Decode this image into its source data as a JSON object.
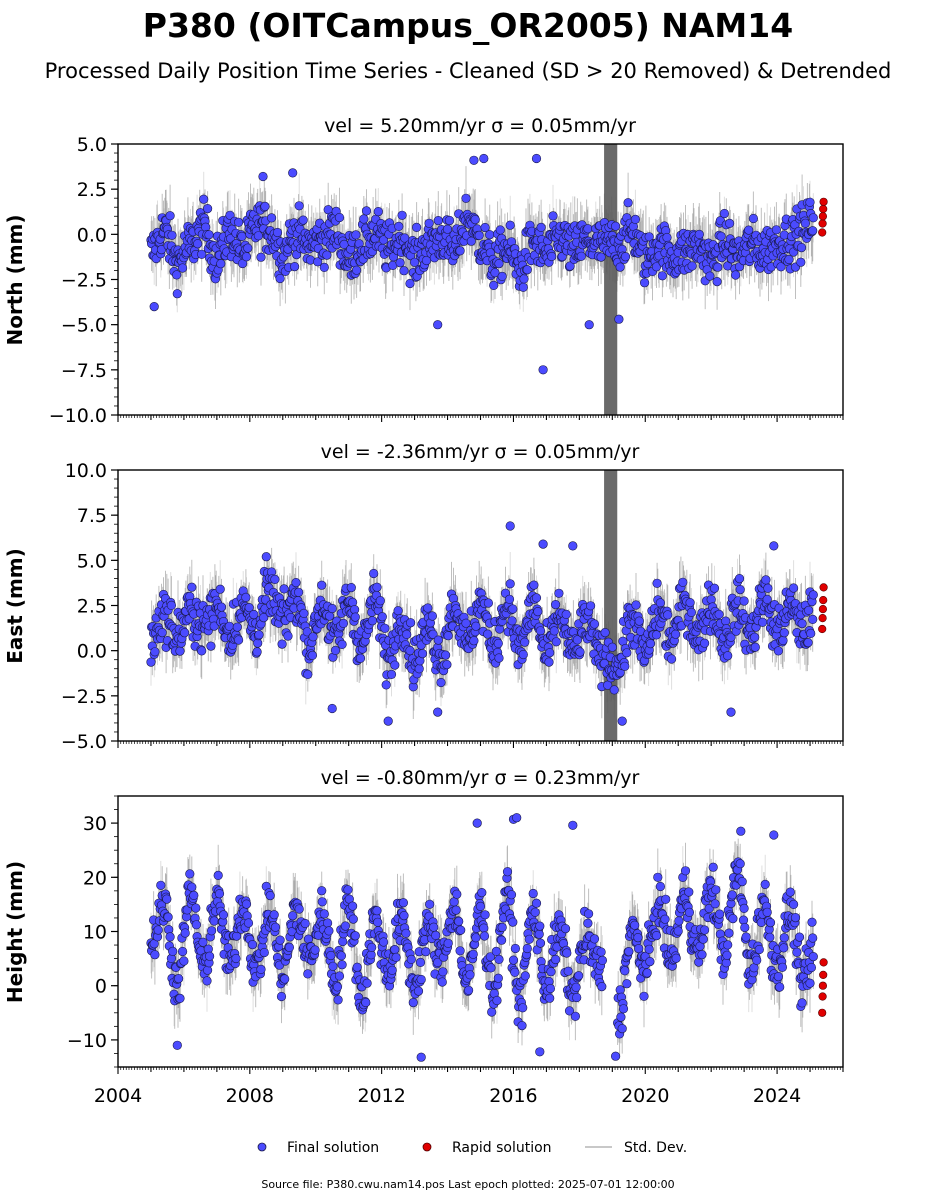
{
  "figure": {
    "title": "P380 (OITCampus_OR2005) NAM14",
    "subtitle": "Processed Daily Position Time Series - Cleaned (SD > 20 Removed) & Detrended",
    "source": "Source file: P380.cwu.nam14.pos  Last epoch plotted: 2025-07-01 12:00:00"
  },
  "legend": {
    "final": "Final solution",
    "rapid": "Rapid solution",
    "std": "Std. Dev."
  },
  "colors": {
    "final": "#4b4bff",
    "rapid": "#e00000",
    "std": "#7f7f7f"
  },
  "chart_data": {
    "type": "scatter",
    "xlim": [
      2004,
      2026
    ],
    "xticks": [
      "2004",
      "2008",
      "2012",
      "2016",
      "2020",
      "2024"
    ],
    "panels": [
      {
        "name": "north",
        "title": "vel = 5.20mm/yr   σ = 0.05mm/yr",
        "ylabel": "North (mm)",
        "ylim": [
          -10,
          5
        ],
        "yticks": [
          "−10.0",
          "−7.5",
          "−5.0",
          "−2.5",
          "0.0",
          "2.5",
          "5.0"
        ],
        "samples": [
          [
            2005.0,
            -1.0
          ],
          [
            2005.4,
            0.2
          ],
          [
            2005.8,
            -1.5
          ],
          [
            2006.2,
            -0.6
          ],
          [
            2006.6,
            0.4
          ],
          [
            2007.0,
            -1.3
          ],
          [
            2007.4,
            0.1
          ],
          [
            2007.8,
            -0.9
          ],
          [
            2008.2,
            0.5
          ],
          [
            2008.6,
            0.3
          ],
          [
            2009.0,
            -1.1
          ],
          [
            2009.4,
            0.0
          ],
          [
            2009.8,
            -0.6
          ],
          [
            2010.2,
            -0.3
          ],
          [
            2010.6,
            0.2
          ],
          [
            2011.0,
            -1.4
          ],
          [
            2011.4,
            -0.5
          ],
          [
            2011.8,
            0.0
          ],
          [
            2012.2,
            -0.8
          ],
          [
            2012.6,
            -0.2
          ],
          [
            2013.0,
            -1.4
          ],
          [
            2013.4,
            -0.6
          ],
          [
            2013.8,
            -0.1
          ],
          [
            2014.2,
            -0.9
          ],
          [
            2014.6,
            0.9
          ],
          [
            2015.0,
            -0.4
          ],
          [
            2015.4,
            -1.6
          ],
          [
            2015.8,
            -0.8
          ],
          [
            2016.2,
            -1.9
          ],
          [
            2016.6,
            -0.5
          ],
          [
            2017.0,
            -1.1
          ],
          [
            2017.4,
            -0.2
          ],
          [
            2017.8,
            -0.9
          ],
          [
            2018.2,
            -0.4
          ],
          [
            2018.6,
            -0.6
          ],
          [
            2019.2,
            -0.5
          ],
          [
            2019.6,
            0.2
          ],
          [
            2020.0,
            -1.4
          ],
          [
            2020.4,
            -0.6
          ],
          [
            2020.8,
            -1.2
          ],
          [
            2021.2,
            -1.0
          ],
          [
            2021.6,
            -0.7
          ],
          [
            2022.0,
            -1.5
          ],
          [
            2022.4,
            -0.4
          ],
          [
            2022.8,
            -1.2
          ],
          [
            2023.2,
            -0.6
          ],
          [
            2023.6,
            -0.9
          ],
          [
            2024.0,
            -0.5
          ],
          [
            2024.4,
            -0.3
          ],
          [
            2024.8,
            0.2
          ],
          [
            2025.1,
            0.8
          ]
        ],
        "outliers": [
          [
            2015.1,
            4.2
          ],
          [
            2016.7,
            4.2
          ],
          [
            2014.8,
            4.1
          ],
          [
            2008.4,
            3.2
          ],
          [
            2009.3,
            3.4
          ],
          [
            2016.9,
            -7.5
          ],
          [
            2018.3,
            -5.0
          ],
          [
            2013.7,
            -5.0
          ],
          [
            2005.1,
            -4.0
          ],
          [
            2019.2,
            -4.7
          ]
        ],
        "rapid": [
          [
            2025.37,
            0.1
          ],
          [
            2025.38,
            0.6
          ],
          [
            2025.39,
            1.0
          ],
          [
            2025.4,
            1.4
          ],
          [
            2025.41,
            1.8
          ]
        ],
        "band": [
          2018.75,
          2019.15
        ]
      },
      {
        "name": "east",
        "title": "vel = -2.36mm/yr   σ = 0.05mm/yr",
        "ylabel": "East (mm)",
        "ylim": [
          -5,
          10
        ],
        "yticks": [
          "−5.0",
          "−2.5",
          "0.0",
          "2.5",
          "5.0",
          "7.5",
          "10.0"
        ],
        "samples": [
          [
            2005.0,
            0.5
          ],
          [
            2005.4,
            2.0
          ],
          [
            2005.8,
            0.8
          ],
          [
            2006.2,
            2.2
          ],
          [
            2006.6,
            1.3
          ],
          [
            2007.0,
            2.5
          ],
          [
            2007.4,
            0.9
          ],
          [
            2007.8,
            2.4
          ],
          [
            2008.2,
            1.1
          ],
          [
            2008.6,
            3.3
          ],
          [
            2009.0,
            1.6
          ],
          [
            2009.4,
            3.0
          ],
          [
            2009.8,
            0.2
          ],
          [
            2010.2,
            2.6
          ],
          [
            2010.6,
            0.5
          ],
          [
            2011.0,
            2.8
          ],
          [
            2011.4,
            0.3
          ],
          [
            2011.8,
            2.9
          ],
          [
            2012.2,
            -0.5
          ],
          [
            2012.6,
            1.9
          ],
          [
            2013.0,
            -0.6
          ],
          [
            2013.4,
            1.4
          ],
          [
            2013.8,
            -0.4
          ],
          [
            2014.2,
            2.5
          ],
          [
            2014.6,
            0.4
          ],
          [
            2015.0,
            2.6
          ],
          [
            2015.4,
            0.2
          ],
          [
            2015.8,
            2.7
          ],
          [
            2016.2,
            0.0
          ],
          [
            2016.6,
            2.6
          ],
          [
            2017.0,
            -0.3
          ],
          [
            2017.4,
            2.0
          ],
          [
            2017.8,
            -0.1
          ],
          [
            2018.2,
            1.6
          ],
          [
            2018.6,
            -0.2
          ],
          [
            2019.2,
            -0.8
          ],
          [
            2019.6,
            1.8
          ],
          [
            2020.0,
            -0.2
          ],
          [
            2020.4,
            2.2
          ],
          [
            2020.8,
            0.6
          ],
          [
            2021.2,
            2.7
          ],
          [
            2021.6,
            0.8
          ],
          [
            2022.0,
            2.6
          ],
          [
            2022.4,
            0.6
          ],
          [
            2022.8,
            2.5
          ],
          [
            2023.2,
            0.8
          ],
          [
            2023.6,
            3.0
          ],
          [
            2024.0,
            1.0
          ],
          [
            2024.4,
            2.4
          ],
          [
            2024.8,
            1.2
          ],
          [
            2025.1,
            2.0
          ]
        ],
        "outliers": [
          [
            2015.9,
            6.9
          ],
          [
            2016.9,
            5.9
          ],
          [
            2017.8,
            5.8
          ],
          [
            2023.9,
            5.8
          ],
          [
            2008.5,
            5.2
          ],
          [
            2013.7,
            -3.4
          ],
          [
            2022.6,
            -3.4
          ],
          [
            2012.2,
            -3.9
          ],
          [
            2010.5,
            -3.2
          ],
          [
            2019.3,
            -3.9
          ]
        ],
        "rapid": [
          [
            2025.37,
            1.2
          ],
          [
            2025.38,
            1.8
          ],
          [
            2025.39,
            2.3
          ],
          [
            2025.4,
            2.8
          ],
          [
            2025.41,
            3.5
          ]
        ],
        "band": [
          2018.75,
          2019.15
        ]
      },
      {
        "name": "height",
        "title": "vel = -0.80mm/yr   σ = 0.23mm/yr",
        "ylabel": "Height (mm)",
        "ylim": [
          -15,
          35
        ],
        "yticks": [
          "−10",
          "0",
          "10",
          "20",
          "30"
        ],
        "samples": [
          [
            2005.0,
            8.0
          ],
          [
            2005.4,
            15.0
          ],
          [
            2005.8,
            0.0
          ],
          [
            2006.2,
            17.0
          ],
          [
            2006.6,
            3.0
          ],
          [
            2007.0,
            16.0
          ],
          [
            2007.4,
            4.0
          ],
          [
            2007.8,
            15.0
          ],
          [
            2008.2,
            3.0
          ],
          [
            2008.6,
            14.0
          ],
          [
            2009.0,
            2.0
          ],
          [
            2009.4,
            14.0
          ],
          [
            2009.8,
            5.0
          ],
          [
            2010.2,
            13.0
          ],
          [
            2010.6,
            1.0
          ],
          [
            2011.0,
            15.0
          ],
          [
            2011.4,
            -2.0
          ],
          [
            2011.8,
            12.0
          ],
          [
            2012.2,
            3.0
          ],
          [
            2012.6,
            12.0
          ],
          [
            2013.0,
            0.0
          ],
          [
            2013.4,
            11.0
          ],
          [
            2013.8,
            4.0
          ],
          [
            2014.2,
            15.0
          ],
          [
            2014.6,
            0.0
          ],
          [
            2015.0,
            14.0
          ],
          [
            2015.4,
            -1.0
          ],
          [
            2015.8,
            17.0
          ],
          [
            2016.2,
            -3.0
          ],
          [
            2016.6,
            14.0
          ],
          [
            2017.0,
            0.0
          ],
          [
            2017.4,
            10.0
          ],
          [
            2017.8,
            -2.0
          ],
          [
            2018.2,
            9.0
          ],
          [
            2018.6,
            3.0
          ],
          [
            2019.2,
            -5.0
          ],
          [
            2019.6,
            10.0
          ],
          [
            2020.0,
            3.0
          ],
          [
            2020.4,
            15.0
          ],
          [
            2020.8,
            5.0
          ],
          [
            2021.2,
            17.0
          ],
          [
            2021.6,
            6.0
          ],
          [
            2022.0,
            18.0
          ],
          [
            2022.4,
            6.0
          ],
          [
            2022.8,
            21.0
          ],
          [
            2023.2,
            3.0
          ],
          [
            2023.6,
            15.0
          ],
          [
            2024.0,
            3.0
          ],
          [
            2024.4,
            14.0
          ],
          [
            2024.8,
            0.0
          ],
          [
            2025.1,
            6.0
          ]
        ],
        "outliers": [
          [
            2014.9,
            30.0
          ],
          [
            2016.0,
            30.7
          ],
          [
            2016.1,
            31.0
          ],
          [
            2017.8,
            29.6
          ],
          [
            2022.9,
            28.5
          ],
          [
            2023.9,
            27.8
          ],
          [
            2013.2,
            -13.2
          ],
          [
            2019.1,
            -13.0
          ],
          [
            2005.8,
            -11.0
          ],
          [
            2016.8,
            -12.2
          ]
        ],
        "rapid": [
          [
            2025.37,
            -5.0
          ],
          [
            2025.38,
            -2.0
          ],
          [
            2025.39,
            0.0
          ],
          [
            2025.4,
            2.0
          ],
          [
            2025.41,
            4.3
          ]
        ],
        "band": null
      }
    ]
  }
}
